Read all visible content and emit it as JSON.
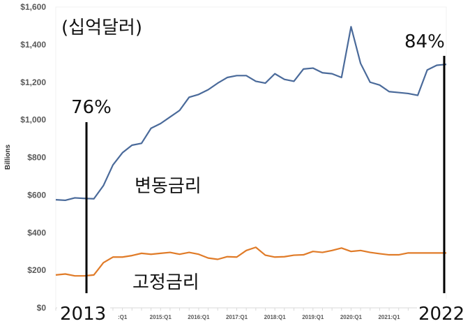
{
  "chart_data": {
    "type": "line",
    "title": "",
    "unit_note": "(십억달러)",
    "ylabel": "Billions",
    "ylim": [
      0,
      1600
    ],
    "yticks": [
      "$0",
      "$200",
      "$400",
      "$600",
      "$800",
      "$1,000",
      "$1,200",
      "$1,400",
      "$1,600"
    ],
    "ytick_values": [
      0,
      200,
      400,
      600,
      800,
      1000,
      1200,
      1400,
      1600
    ],
    "x_start": "2012:Q2",
    "x_end": "2022:Q3",
    "xtick_labels": [
      ":Q1",
      "2015:Q1",
      "2016:Q1",
      "2017:Q1",
      "2018:Q1",
      "2019:Q1",
      "2020:Q1",
      "2021:Q1"
    ],
    "xtick_indices": [
      7,
      11,
      15,
      19,
      23,
      27,
      31,
      35
    ],
    "series": [
      {
        "name": "변동금리",
        "color": "#4a6a9a",
        "values": [
          575,
          572,
          585,
          582,
          580,
          650,
          760,
          825,
          865,
          875,
          955,
          980,
          1015,
          1050,
          1120,
          1135,
          1160,
          1195,
          1225,
          1235,
          1235,
          1205,
          1195,
          1245,
          1215,
          1205,
          1270,
          1275,
          1250,
          1245,
          1225,
          1495,
          1300,
          1200,
          1185,
          1150,
          1145,
          1140,
          1130,
          1265,
          1290,
          1295
        ]
      },
      {
        "name": "고정금리",
        "color": "#e07b28",
        "values": [
          175,
          180,
          170,
          170,
          175,
          240,
          270,
          270,
          278,
          290,
          285,
          290,
          295,
          285,
          295,
          285,
          265,
          258,
          272,
          270,
          305,
          322,
          280,
          270,
          272,
          280,
          282,
          300,
          295,
          305,
          318,
          300,
          305,
          295,
          288,
          282,
          282,
          292,
          292,
          292,
          292,
          292
        ]
      }
    ],
    "annotations": [
      {
        "text": "76%",
        "year_label": "2013",
        "index": 3.2
      },
      {
        "text": "84%",
        "year_label": "2022",
        "index": 40.7
      }
    ]
  }
}
